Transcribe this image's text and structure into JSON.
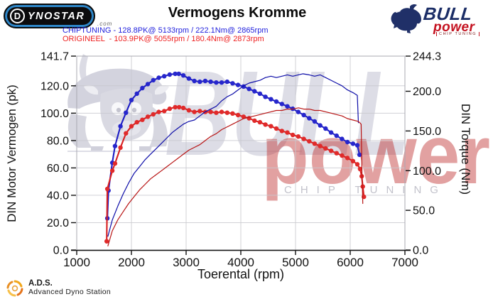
{
  "header": {
    "dynostar": {
      "d": "D",
      "rest": "YNOSTAR",
      "com": ".com"
    },
    "title": "Vermogens Kromme",
    "bullpower": {
      "bull": "BULL",
      "power": "power",
      "chip": "CHIP TUNING"
    },
    "legend": [
      {
        "name": "CHIPTUNING",
        "color": "#2222dd",
        "power": "128.8PK@ 5133rpm",
        "torque": "222.1Nm@ 2865rpm",
        "text": "CHIPTUNING - 128.8PK@ 5133rpm / 222.1Nm@ 2865rpm"
      },
      {
        "name": "ORIGINEEL",
        "color": "#ee2222",
        "power": "103.9PK@ 5055rpm",
        "torque": "180.4Nm@ 2873rpm",
        "text": "ORIGINEEL  - 103.9PK@ 5055rpm / 180.4Nm@ 2873rpm"
      }
    ]
  },
  "watermark": {
    "bull_text": "BULL",
    "power_text": "power",
    "chip_text": "CHIP TUNING",
    "gray": "#c3c3d2",
    "red": "#c03030"
  },
  "footer": {
    "abbr": "A.D.S.",
    "name": "Advanced Dyno Station"
  },
  "chart_data": {
    "type": "line",
    "title": "Vermogens Kromme",
    "xlabel": "Toerental (rpm)",
    "ylabel_left": "DIN Motor Vermogen (pk)",
    "ylabel_right": "DIN Torque (Nm)",
    "xlim": [
      1000,
      7000
    ],
    "ylim_left": [
      0,
      141.7
    ],
    "ylim_right": [
      0,
      244.3
    ],
    "grid": true,
    "x_ticks": [
      1000,
      2000,
      3000,
      4000,
      5000,
      6000,
      7000
    ],
    "x_tick_labels": [
      "1000",
      "2000",
      "3000",
      "4000",
      "5000",
      "6000",
      "7000"
    ],
    "y_left_ticks": [
      0,
      20,
      40,
      60,
      80,
      100,
      120,
      141.7
    ],
    "y_left_tick_labels": [
      "0.0",
      "20.0",
      "40.0",
      "60.0",
      "80.0",
      "100.0",
      "120.0",
      "141.7"
    ],
    "y_right_ticks": [
      0,
      50,
      100,
      150,
      200,
      244.3
    ],
    "y_right_tick_labels": [
      "0.0",
      "50.0",
      "100.0",
      "150.0",
      "200.0",
      "244.3"
    ],
    "series": [
      {
        "name": "chiptuning_torque_nm",
        "legend": "CHIPTUNING",
        "axis": "right",
        "color": "#1d1dc4",
        "marker_color": "#2626cc",
        "width": 2.1,
        "markers": true,
        "peak": {
          "value": 222.1,
          "rpm": 2865
        },
        "x": [
          1560,
          1580,
          1650,
          1700,
          1800,
          1900,
          2000,
          2100,
          2200,
          2300,
          2400,
          2500,
          2600,
          2700,
          2800,
          2865,
          2950,
          3050,
          3150,
          3250,
          3350,
          3450,
          3550,
          3650,
          3750,
          3850,
          3950,
          4050,
          4150,
          4250,
          4350,
          4450,
          4550,
          4650,
          4750,
          4850,
          4950,
          5050,
          5150,
          5250,
          5350,
          5450,
          5550,
          5650,
          5750,
          5850,
          5950,
          6050,
          6130,
          6170
        ],
        "y": [
          40,
          75,
          110,
          131,
          156,
          173,
          189,
          197,
          204,
          209,
          214,
          217,
          219,
          221,
          222,
          222,
          220,
          216,
          213,
          212,
          213,
          212,
          211,
          211,
          212,
          210,
          208,
          206,
          203,
          200,
          197,
          193,
          190,
          187,
          184,
          181,
          178,
          174,
          170,
          166,
          162,
          157,
          153,
          148,
          144,
          140,
          136,
          134,
          132,
          120
        ]
      },
      {
        "name": "origineel_torque_nm",
        "legend": "ORIGINEEL",
        "axis": "right",
        "color": "#d81f1f",
        "marker_color": "#e02a2a",
        "width": 2.1,
        "markers": true,
        "peak": {
          "value": 180.4,
          "rpm": 2873
        },
        "x": [
          1548,
          1560,
          1650,
          1700,
          1800,
          1900,
          2000,
          2100,
          2200,
          2300,
          2400,
          2500,
          2600,
          2700,
          2800,
          2873,
          2950,
          3050,
          3150,
          3250,
          3350,
          3450,
          3550,
          3650,
          3750,
          3850,
          3950,
          4050,
          4150,
          4250,
          4350,
          4450,
          4550,
          4650,
          4750,
          4850,
          4950,
          5050,
          5150,
          5250,
          5350,
          5450,
          5550,
          5650,
          5750,
          5850,
          5950,
          6050,
          6130,
          6180,
          6210,
          6230,
          6250
        ],
        "y": [
          11,
          77,
          100,
          109,
          129,
          147,
          156,
          161,
          164,
          168,
          171,
          174,
          175,
          178,
          180,
          180,
          179,
          176,
          174,
          175,
          174,
          174,
          173,
          174,
          173,
          172,
          170,
          168,
          166,
          163,
          161,
          158,
          156,
          153,
          150,
          148,
          145,
          143,
          140,
          137,
          134,
          131,
          128,
          125,
          122,
          119,
          116,
          112,
          108,
          102,
          93,
          80,
          67
        ]
      },
      {
        "name": "chiptuning_power_pk",
        "legend": "CHIPTUNING",
        "axis": "left",
        "color": "#0d0da8",
        "width": 1.2,
        "markers": false,
        "peak": {
          "value": 128.8,
          "rpm": 5133
        },
        "x": [
          1570,
          1650,
          1750,
          1850,
          1950,
          2050,
          2150,
          2250,
          2350,
          2450,
          2550,
          2650,
          2750,
          2850,
          2950,
          3050,
          3150,
          3250,
          3350,
          3450,
          3550,
          3650,
          3750,
          3850,
          3950,
          4050,
          4150,
          4250,
          4350,
          4450,
          4550,
          4650,
          4750,
          4850,
          4950,
          5050,
          5133,
          5250,
          5350,
          5450,
          5550,
          5650,
          5750,
          5850,
          5950,
          6050,
          6130,
          6150
        ],
        "y": [
          10,
          22,
          32,
          41,
          49,
          56,
          61,
          66,
          70,
          74,
          78,
          82,
          86,
          89,
          92,
          94,
          95,
          98,
          101,
          103,
          105,
          109,
          112,
          114,
          117,
          120,
          122,
          123,
          124,
          126,
          127,
          126,
          127,
          128,
          127,
          128,
          128.8,
          128,
          127,
          128,
          126,
          124,
          122,
          120,
          117,
          115,
          113,
          93
        ]
      },
      {
        "name": "origineel_power_pk",
        "legend": "ORIGINEEL",
        "axis": "left",
        "color": "#b81414",
        "width": 1.2,
        "markers": false,
        "peak": {
          "value": 103.9,
          "rpm": 5055
        },
        "x": [
          1570,
          1650,
          1750,
          1850,
          1950,
          2050,
          2150,
          2250,
          2350,
          2450,
          2550,
          2650,
          2750,
          2850,
          2950,
          3050,
          3150,
          3250,
          3350,
          3450,
          3550,
          3650,
          3750,
          3850,
          3950,
          4050,
          4150,
          4250,
          4350,
          4450,
          4550,
          4650,
          4750,
          4850,
          4950,
          5055,
          5150,
          5250,
          5350,
          5450,
          5550,
          5650,
          5750,
          5850,
          5950,
          6050,
          6150,
          6200,
          6215,
          6230
        ],
        "y": [
          3,
          14,
          22,
          28,
          34,
          39,
          44,
          48,
          52,
          55,
          58,
          61,
          64,
          67,
          70,
          73,
          75,
          77,
          80,
          83,
          85,
          88,
          90,
          92,
          94,
          96,
          97,
          98,
          99,
          100,
          101,
          102,
          102,
          103,
          103,
          103.9,
          103,
          103,
          102,
          102,
          101,
          100,
          99,
          98,
          96,
          95,
          94,
          92,
          55,
          34
        ]
      }
    ]
  }
}
